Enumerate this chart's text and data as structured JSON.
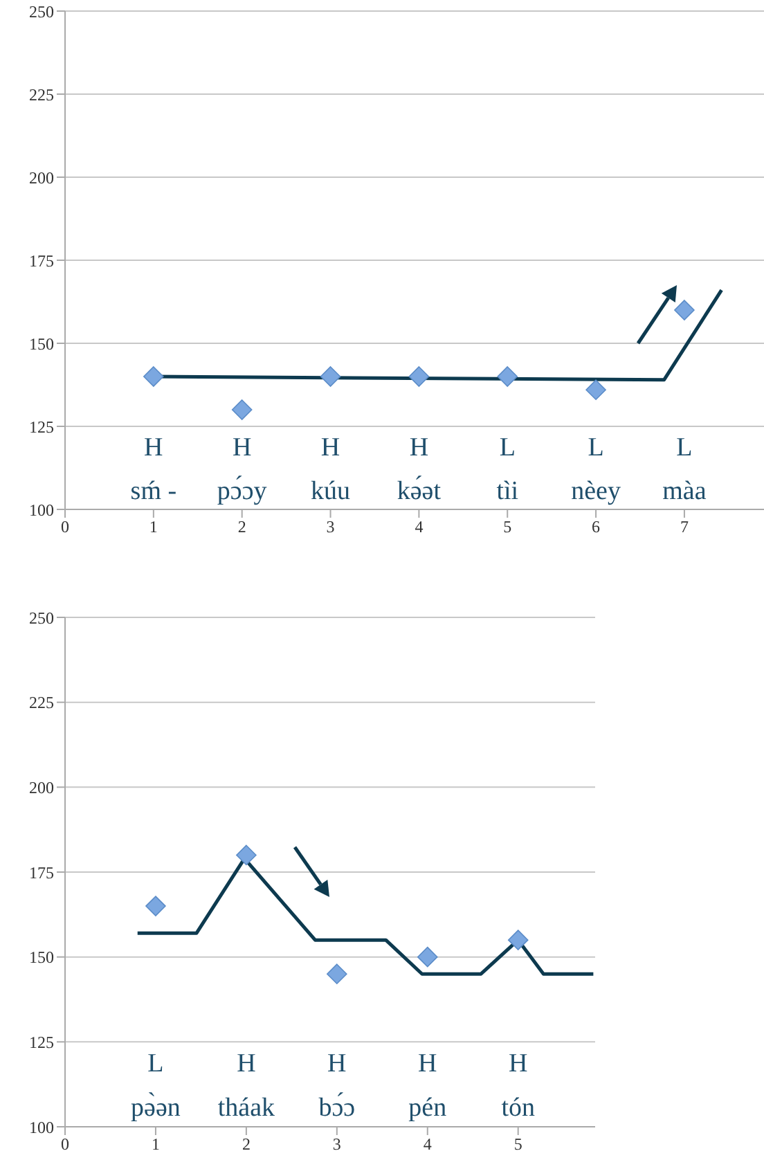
{
  "chart_data": [
    {
      "type": "scatter",
      "xlim": [
        0,
        7.9
      ],
      "xticks": [
        0,
        1,
        2,
        3,
        4,
        5,
        6,
        7
      ],
      "ylim": [
        100,
        250
      ],
      "yticks": [
        100,
        125,
        150,
        175,
        200,
        225,
        250
      ],
      "grid": "y",
      "marker": "diamond",
      "series": [
        {
          "color": "#7ba7e0",
          "x": [
            1,
            2,
            3,
            4,
            5,
            6,
            7
          ],
          "values": [
            140,
            130,
            140,
            140,
            140,
            136,
            160
          ]
        },
        {
          "type": "line",
          "color": "#0d3a4f",
          "marker": "none",
          "line_style": "solid",
          "x": [
            0.97,
            6.77,
            7.42
          ],
          "values": [
            140,
            139,
            166
          ]
        }
      ],
      "annotations": [
        "H",
        "sḿ -",
        "H",
        "pɔ́ɔy",
        "H",
        "kúu",
        "H",
        "kə́ət",
        "L",
        "tìi",
        "L",
        "nèey",
        "L",
        "màa"
      ]
    },
    {
      "type": "scatter",
      "xlim": [
        0,
        5.85
      ],
      "xticks": [
        0,
        1,
        2,
        3,
        4,
        5
      ],
      "ylim": [
        100,
        250
      ],
      "yticks": [
        100,
        125,
        150,
        175,
        200,
        225,
        250
      ],
      "grid": "y",
      "marker": "diamond",
      "series": [
        {
          "color": "#7ba7e0",
          "x": [
            1,
            2,
            3,
            4,
            5
          ],
          "values": [
            165,
            180,
            145,
            150,
            155
          ]
        },
        {
          "type": "line",
          "color": "#0d3a4f",
          "marker": "none",
          "line_style": "solid",
          "x": [
            0.8,
            1.45,
            1.98,
            2.76,
            3.54,
            3.94,
            4.59,
            5.0,
            5.28,
            5.83
          ],
          "values": [
            157,
            157,
            179,
            155,
            155,
            145,
            145,
            155,
            145,
            145
          ]
        }
      ],
      "annotations": [
        "L",
        "pə̀ən",
        "H",
        "tháak",
        "H",
        "bɔ́ɔ",
        "H",
        "pén",
        "H",
        "tón"
      ]
    }
  ]
}
